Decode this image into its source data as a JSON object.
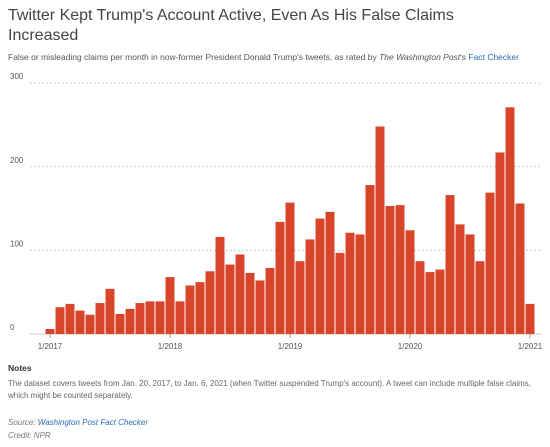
{
  "title": "Twitter Kept Trump's Account Active, Even As His False Claims Increased",
  "subtitle": {
    "text": "False or misleading claims per month in now-former President Donald Trump's tweets, as rated by ",
    "publication": "The Washington Post",
    "possessive": "'s ",
    "link": "Fact Checker"
  },
  "notes": {
    "heading": "Notes",
    "text": "The dataset covers tweets from Jan. 20, 2017, to Jan. 6, 2021 (when Twitter suspended Trump's account). A tweet can include multiple false claims, which might be counted separately."
  },
  "source": {
    "label": "Source: ",
    "link": "Washington Post Fact Checker"
  },
  "credit": "Credit: NPR",
  "chart_data": {
    "type": "bar",
    "color": "#d9452b",
    "grid": true,
    "categories": [
      "1/2017",
      null,
      null,
      null,
      null,
      null,
      null,
      null,
      null,
      null,
      null,
      null,
      "1/2018",
      null,
      null,
      null,
      null,
      null,
      null,
      null,
      null,
      null,
      null,
      null,
      "1/2019",
      null,
      null,
      null,
      null,
      null,
      null,
      null,
      null,
      null,
      null,
      null,
      "1/2020",
      null,
      null,
      null,
      null,
      null,
      null,
      null,
      null,
      null,
      null,
      null,
      "1/2021"
    ],
    "values": [
      6,
      32,
      36,
      28,
      23,
      37,
      54,
      24,
      30,
      37,
      39,
      39,
      68,
      39,
      58,
      62,
      75,
      116,
      83,
      95,
      73,
      64,
      79,
      134,
      157,
      87,
      113,
      138,
      146,
      97,
      121,
      119,
      178,
      248,
      153,
      154,
      124,
      87,
      74,
      77,
      166,
      131,
      119,
      87,
      169,
      217,
      271,
      156,
      36
    ],
    "ylim": [
      0,
      300
    ],
    "yticks": [
      0,
      100,
      200,
      300
    ]
  }
}
